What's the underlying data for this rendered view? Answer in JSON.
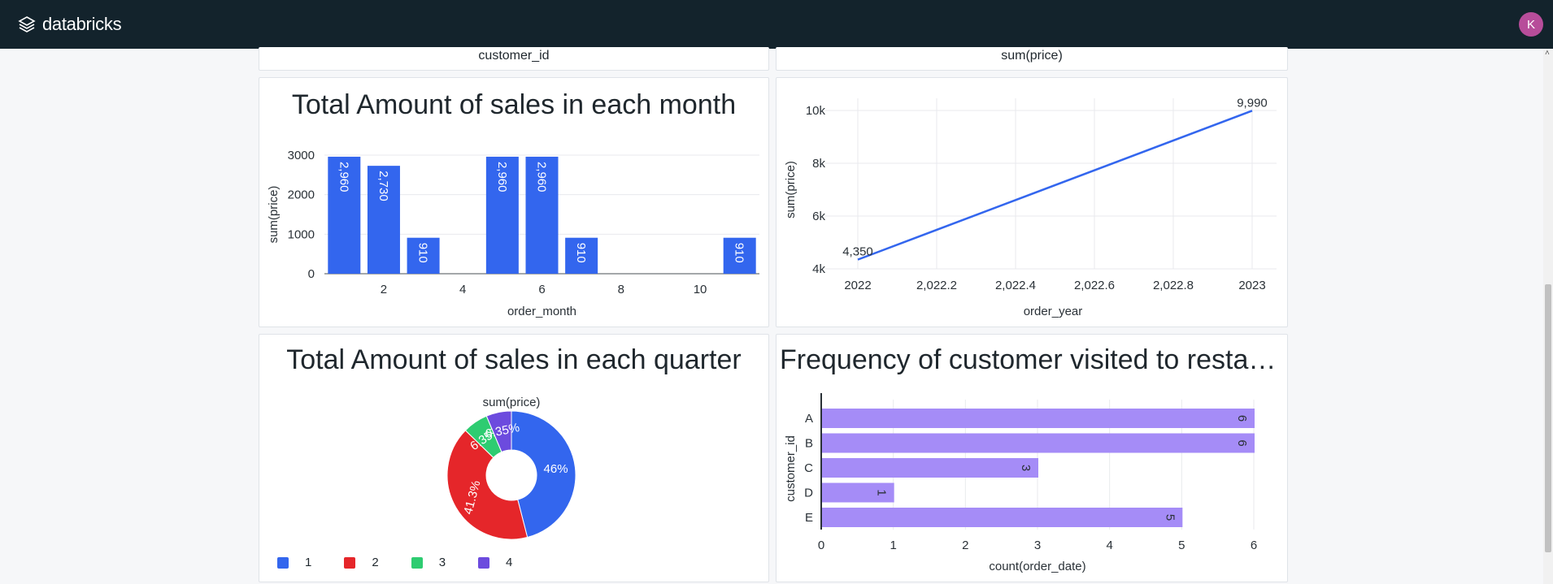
{
  "app": {
    "logo_text": "databricks",
    "user_initial": "K"
  },
  "top_strip": {
    "left_label": "customer_id",
    "right_label": "sum(price)"
  },
  "colors": {
    "blue": "#3366ee",
    "red": "#e5262a",
    "green": "#2ecc71",
    "purple": "#6c4bde",
    "lavender": "#a58cf7"
  },
  "charts": [
    {
      "type": "bar",
      "title": "Total Amount of sales in each month",
      "xlabel": "order_month",
      "ylabel": "sum(price)",
      "x": [
        1,
        2,
        3,
        5,
        6,
        7,
        11
      ],
      "values": [
        2960,
        2730,
        910,
        2960,
        2960,
        910,
        910
      ],
      "data_labels": [
        "2,960",
        "2,730",
        "910",
        "2,960",
        "2,960",
        "910",
        "910"
      ],
      "xticks": [
        "2",
        "4",
        "6",
        "8",
        "10"
      ],
      "yticks": [
        "0",
        "1000",
        "2000",
        "3000"
      ],
      "ylim": [
        0,
        3000
      ]
    },
    {
      "type": "line",
      "title": "",
      "xlabel": "order_year",
      "ylabel": "sum(price)",
      "x": [
        2022,
        2023
      ],
      "values": [
        4350,
        9990
      ],
      "data_labels": [
        "4,350",
        "9,990"
      ],
      "xticks": [
        "2022",
        "2,022.2",
        "2,022.4",
        "2,022.6",
        "2,022.8",
        "2023"
      ],
      "yticks": [
        "4k",
        "6k",
        "8k",
        "10k"
      ],
      "ylim": [
        4000,
        10000
      ]
    },
    {
      "type": "pie",
      "title": "Total Amount of sales in each quarter",
      "series_label": "sum(price)",
      "categories": [
        "1",
        "2",
        "3",
        "4"
      ],
      "values": [
        46,
        41.3,
        6.35,
        6.35
      ],
      "data_labels": [
        "46%",
        "41.3%",
        "6.35%",
        "6.35%"
      ]
    },
    {
      "type": "bar",
      "orientation": "horizontal",
      "title": "Frequency of customer visited to restaur…",
      "xlabel": "count(order_date)",
      "ylabel": "customer_id",
      "categories": [
        "A",
        "B",
        "C",
        "D",
        "E"
      ],
      "values": [
        6,
        6,
        3,
        1,
        5
      ],
      "data_labels": [
        "6",
        "6",
        "3",
        "1",
        "5"
      ],
      "xticks": [
        "0",
        "1",
        "2",
        "3",
        "4",
        "5",
        "6"
      ],
      "xlim": [
        0,
        6
      ]
    }
  ]
}
